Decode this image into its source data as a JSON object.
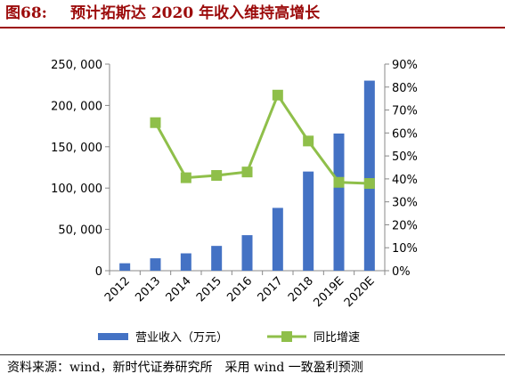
{
  "header": {
    "figure_number": "图68:",
    "title": "预计拓斯达 2020 年收入维持高增长"
  },
  "source": "资料来源：wind，新时代证券研究所　采用 wind 一致盈利预测",
  "colors": {
    "title": "#9c0b0b",
    "bars": "#4472c4",
    "line": "#8fbf4a"
  },
  "chart_data": {
    "type": "bar",
    "categories": [
      "2012",
      "2013",
      "2014",
      "2015",
      "2016",
      "2017",
      "2018",
      "2019E",
      "2020E"
    ],
    "series": [
      {
        "name": "营业收入（万元）",
        "type": "bar",
        "axis": "left",
        "values": [
          9000,
          15000,
          21000,
          30000,
          43000,
          76000,
          120000,
          166000,
          230000
        ]
      },
      {
        "name": "同比增速",
        "type": "line",
        "axis": "right",
        "values": [
          null,
          64.5,
          40.5,
          41.5,
          43.0,
          76.5,
          56.5,
          38.5,
          38.0
        ]
      }
    ],
    "y_left": {
      "min": 0,
      "max": 250000,
      "tick_labels": [
        "0",
        "50, 000",
        "100, 000",
        "150, 000",
        "200, 000",
        "250, 000"
      ]
    },
    "y_right": {
      "min": 0,
      "max": 90,
      "tick_labels": [
        "0%",
        "10%",
        "20%",
        "30%",
        "40%",
        "50%",
        "60%",
        "70%",
        "80%",
        "90%"
      ]
    },
    "grid": false,
    "legend_position": "bottom"
  }
}
